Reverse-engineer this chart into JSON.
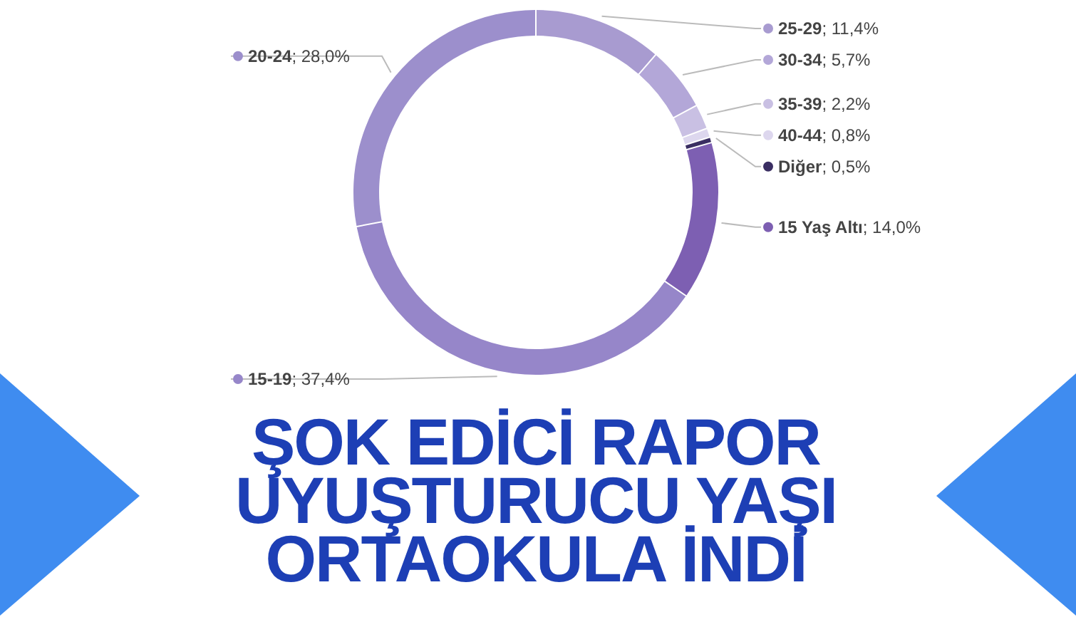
{
  "chart_data": {
    "type": "donut",
    "title": "ŞOK EDİCİ RAPOR\nUYUŞTURUCU YAŞI\nORTAOKULA İNDİ",
    "categories": [
      "25-29",
      "30-34",
      "35-39",
      "40-44",
      "Diğer",
      "15 Yaş Altı",
      "15-19",
      "20-24"
    ],
    "values": [
      11.4,
      5.7,
      2.2,
      0.8,
      0.5,
      14.0,
      37.4,
      28.0
    ],
    "value_labels": [
      "; 11,4%",
      "; 5,7%",
      "; 2,2%",
      "; 0,8%",
      "; 0,5%",
      "; 14,0%",
      "; 37,4%",
      "; 28,0%"
    ],
    "colors": [
      "#a89bd0",
      "#b3a7d8",
      "#c9c0e3",
      "#ddd7ee",
      "#3a2e62",
      "#7d5fb2",
      "#9686c9",
      "#9c8fcc"
    ],
    "legend": "right"
  }
}
